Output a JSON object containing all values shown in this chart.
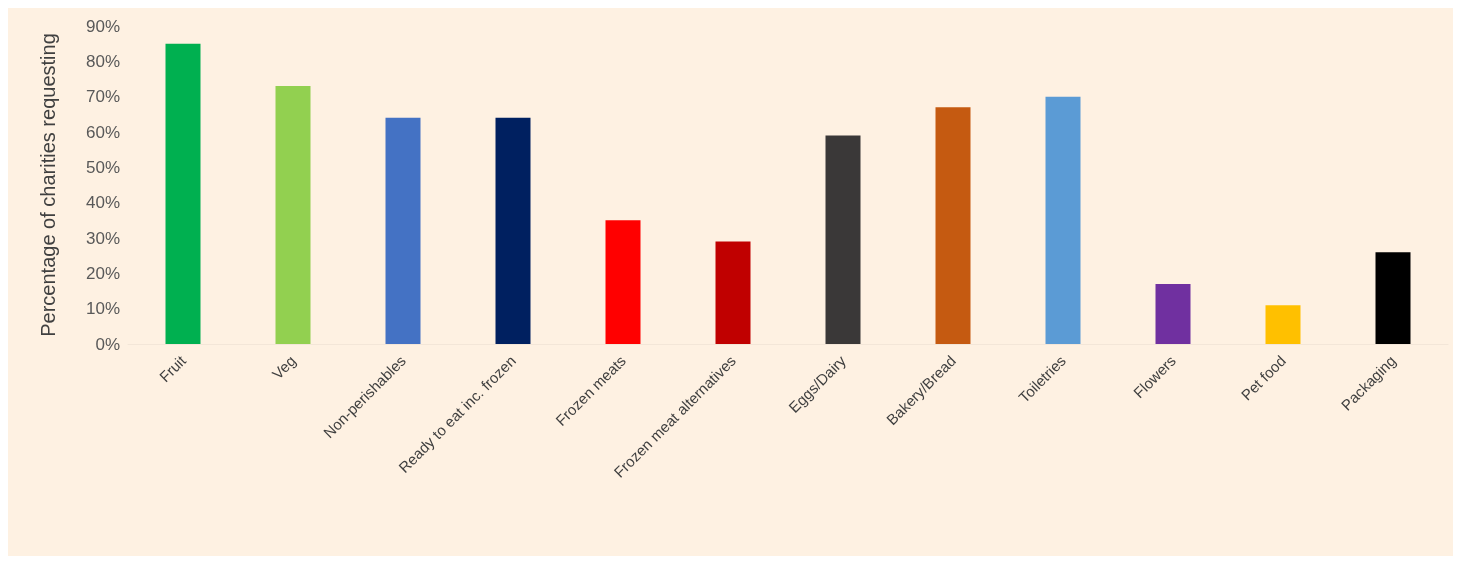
{
  "chart_data": {
    "type": "bar",
    "ylabel": "Percentage of charities requesting",
    "categories": [
      "Fruit",
      "Veg",
      "Non-perishables",
      "Ready to eat inc. frozen",
      "Frozen meats",
      "Frozen meat alternatives",
      "Eggs/Dairy",
      "Bakery/Bread",
      "Toiletries",
      "Flowers",
      "Pet food",
      "Packaging"
    ],
    "values": [
      85,
      73,
      64,
      64,
      35,
      29,
      59,
      67,
      70,
      17,
      11,
      26
    ],
    "colors": [
      "#00b050",
      "#92d050",
      "#4472c4",
      "#002060",
      "#ff0000",
      "#c00000",
      "#3a3838",
      "#c55a11",
      "#5b9bd5",
      "#7030a0",
      "#ffc000",
      "#000000"
    ],
    "ylim": [
      0,
      90
    ],
    "yticks": [
      {
        "value": 0,
        "label": "0%"
      },
      {
        "value": 10,
        "label": "10%"
      },
      {
        "value": 20,
        "label": "20%"
      },
      {
        "value": 30,
        "label": "30%"
      },
      {
        "value": 40,
        "label": "40%"
      },
      {
        "value": 50,
        "label": "50%"
      },
      {
        "value": 60,
        "label": "60%"
      },
      {
        "value": 70,
        "label": "70%"
      },
      {
        "value": 80,
        "label": "80%"
      },
      {
        "value": 90,
        "label": "90%"
      }
    ],
    "grid": false
  }
}
